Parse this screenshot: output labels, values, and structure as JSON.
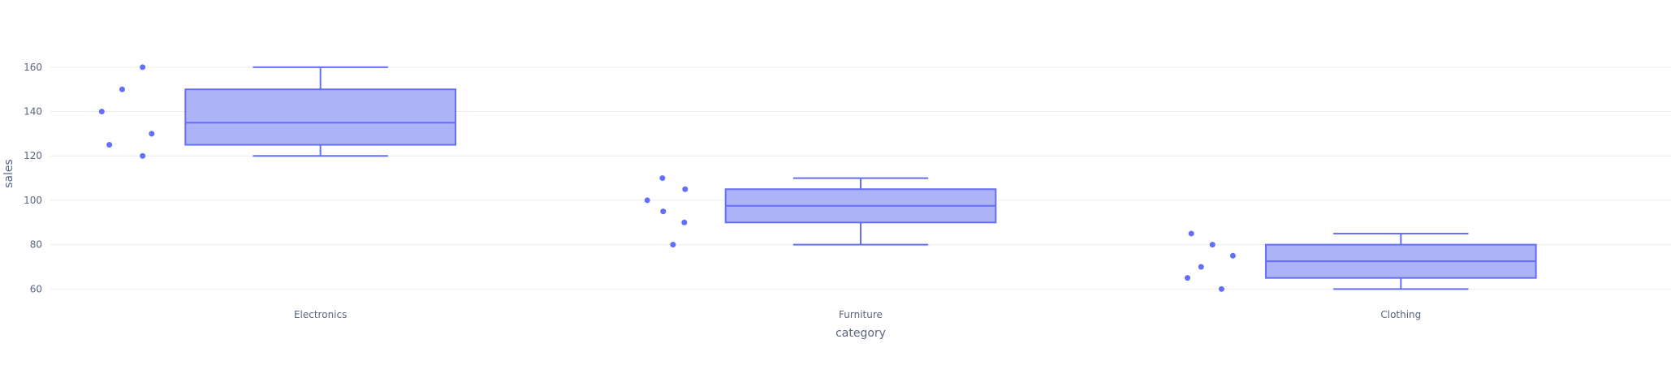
{
  "chart_data": {
    "type": "box",
    "xlabel": "category",
    "ylabel": "sales",
    "ylim": [
      55,
      172
    ],
    "yticks": [
      60,
      80,
      100,
      120,
      140,
      160
    ],
    "grid": true,
    "colors": {
      "box_fill": "#aeb3f7",
      "box_line": "#636efa",
      "point": "#636efa",
      "grid": "#ebebeb",
      "tick_text": "#5a6584"
    },
    "categories": [
      "Electronics",
      "Furniture",
      "Clothing"
    ],
    "boxes": [
      {
        "category": "Electronics",
        "min": 120,
        "q1": 125,
        "median": 135,
        "q3": 150,
        "max": 160,
        "points": [
          {
            "y": 160,
            "jitter": 0.72
          },
          {
            "y": 150,
            "jitter": 0.45
          },
          {
            "y": 140,
            "jitter": 0.18
          },
          {
            "y": 130,
            "jitter": 0.84
          },
          {
            "y": 125,
            "jitter": 0.28
          },
          {
            "y": 120,
            "jitter": 0.72
          }
        ]
      },
      {
        "category": "Furniture",
        "min": 80,
        "q1": 90,
        "median": 97.5,
        "q3": 105,
        "max": 110,
        "points": [
          {
            "y": 110,
            "jitter": 0.45
          },
          {
            "y": 105,
            "jitter": 0.75
          },
          {
            "y": 100,
            "jitter": 0.25
          },
          {
            "y": 95,
            "jitter": 0.46
          },
          {
            "y": 90,
            "jitter": 0.74
          },
          {
            "y": 80,
            "jitter": 0.59
          }
        ]
      },
      {
        "category": "Clothing",
        "min": 60,
        "q1": 65,
        "median": 72.5,
        "q3": 80,
        "max": 85,
        "points": [
          {
            "y": 85,
            "jitter": 0.3
          },
          {
            "y": 80,
            "jitter": 0.58
          },
          {
            "y": 75,
            "jitter": 0.85
          },
          {
            "y": 70,
            "jitter": 0.43
          },
          {
            "y": 65,
            "jitter": 0.25
          },
          {
            "y": 60,
            "jitter": 0.7
          }
        ]
      }
    ]
  }
}
